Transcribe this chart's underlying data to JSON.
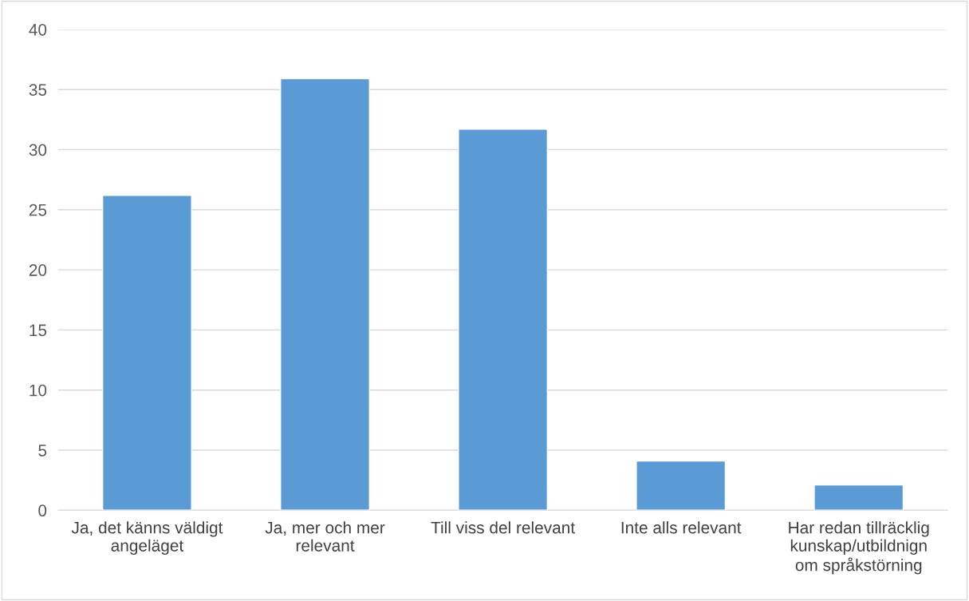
{
  "chart_data": {
    "type": "bar",
    "categories": [
      "Ja, det känns väldigt\nangeläget",
      "Ja, mer och mer\nrelevant",
      "Till viss del relevant",
      "Inte alls relevant",
      "Har redan tillräcklig\nkunskap/utbildnign\nom språkstörning"
    ],
    "values": [
      26.2,
      35.9,
      31.7,
      4.1,
      2.1
    ],
    "color": "#5b9bd5",
    "ylim": [
      0,
      40
    ],
    "yticks": [
      0,
      5,
      10,
      15,
      20,
      25,
      30,
      35,
      40
    ],
    "grid": "y",
    "legend": false
  }
}
